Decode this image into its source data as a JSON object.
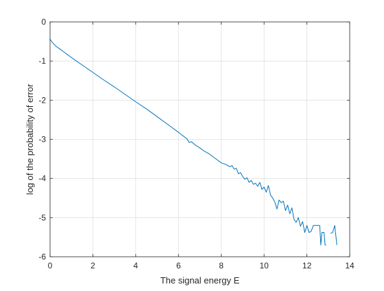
{
  "chart_data": {
    "type": "line",
    "title": "",
    "xlabel": "The signal energy E",
    "ylabel": "log of the probability of error",
    "xlim": [
      0,
      14
    ],
    "ylim": [
      -6,
      0
    ],
    "xticks": [
      "0",
      "2",
      "4",
      "6",
      "8",
      "10",
      "12",
      "14"
    ],
    "yticks": [
      "0",
      "-1",
      "-2",
      "-3",
      "-4",
      "-5",
      "-6"
    ],
    "grid": true,
    "legend": "none",
    "series_color": "#0072BD",
    "series": [
      {
        "segments": [
          [
            [
              0.0,
              -0.44
            ],
            [
              0.1,
              -0.52
            ],
            [
              0.2,
              -0.58
            ],
            [
              0.3,
              -0.63
            ],
            [
              0.4,
              -0.67
            ],
            [
              0.5,
              -0.71
            ],
            [
              0.6,
              -0.75
            ],
            [
              0.8,
              -0.83
            ],
            [
              1.0,
              -0.91
            ],
            [
              1.2,
              -0.99
            ],
            [
              1.5,
              -1.1
            ],
            [
              2.0,
              -1.29
            ],
            [
              2.5,
              -1.48
            ],
            [
              3.0,
              -1.66
            ],
            [
              3.5,
              -1.85
            ],
            [
              4.0,
              -2.04
            ],
            [
              4.5,
              -2.22
            ],
            [
              5.0,
              -2.42
            ],
            [
              5.5,
              -2.62
            ],
            [
              6.0,
              -2.82
            ],
            [
              6.4,
              -2.99
            ],
            [
              6.5,
              -3.08
            ],
            [
              6.6,
              -3.06
            ],
            [
              6.8,
              -3.15
            ],
            [
              7.0,
              -3.22
            ],
            [
              7.2,
              -3.3
            ],
            [
              7.4,
              -3.36
            ],
            [
              7.6,
              -3.44
            ],
            [
              7.8,
              -3.52
            ],
            [
              8.0,
              -3.6
            ],
            [
              8.2,
              -3.64
            ],
            [
              8.4,
              -3.7
            ],
            [
              8.5,
              -3.67
            ],
            [
              8.6,
              -3.76
            ],
            [
              8.7,
              -3.74
            ],
            [
              8.8,
              -3.88
            ],
            [
              8.9,
              -3.85
            ],
            [
              9.0,
              -3.95
            ],
            [
              9.1,
              -4.02
            ],
            [
              9.2,
              -3.98
            ],
            [
              9.3,
              -4.1
            ],
            [
              9.4,
              -4.05
            ],
            [
              9.5,
              -4.15
            ],
            [
              9.6,
              -4.12
            ],
            [
              9.7,
              -4.2
            ],
            [
              9.8,
              -4.1
            ],
            [
              9.9,
              -4.28
            ],
            [
              10.0,
              -4.22
            ],
            [
              10.1,
              -4.35
            ],
            [
              10.2,
              -4.18
            ],
            [
              10.3,
              -4.42
            ],
            [
              10.4,
              -4.5
            ],
            [
              10.5,
              -4.6
            ],
            [
              10.6,
              -4.78
            ],
            [
              10.7,
              -4.55
            ],
            [
              10.8,
              -4.62
            ],
            [
              10.9,
              -4.58
            ],
            [
              11.0,
              -4.82
            ],
            [
              11.1,
              -4.68
            ],
            [
              11.2,
              -4.9
            ],
            [
              11.3,
              -4.75
            ],
            [
              11.4,
              -5.05
            ],
            [
              11.5,
              -5.12
            ],
            [
              11.6,
              -5.0
            ],
            [
              11.7,
              -5.22
            ],
            [
              11.8,
              -5.1
            ],
            [
              11.9,
              -5.38
            ],
            [
              12.0,
              -5.2
            ],
            [
              12.1,
              -5.38
            ],
            [
              12.2,
              -5.35
            ],
            [
              12.3,
              -5.2
            ],
            [
              12.5,
              -5.2
            ],
            [
              12.6,
              -5.2
            ],
            [
              12.65,
              -5.7
            ],
            [
              12.7,
              -5.38
            ],
            [
              12.8,
              -5.38
            ],
            [
              12.85,
              -5.7
            ],
            [
              12.9,
              -5.7
            ]
          ],
          [
            [
              13.1,
              -5.4
            ],
            [
              13.2,
              -5.38
            ],
            [
              13.3,
              -5.2
            ],
            [
              13.4,
              -5.7
            ]
          ]
        ]
      }
    ]
  }
}
